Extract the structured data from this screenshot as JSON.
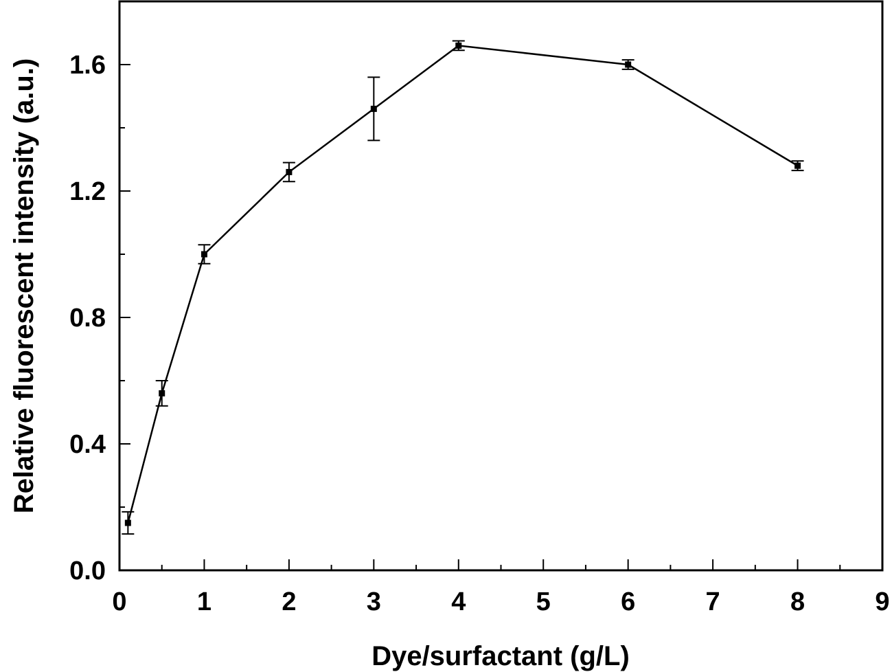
{
  "chart_data": {
    "type": "line",
    "xlabel": "Dye/surfactant (g/L)",
    "ylabel": "Relative fluorescent intensity (a.u.)",
    "xlim": [
      0,
      9
    ],
    "ylim": [
      0,
      1.8
    ],
    "x_ticks": [
      "0",
      "1",
      "2",
      "3",
      "4",
      "5",
      "6",
      "7",
      "8",
      "9"
    ],
    "y_ticks": [
      "0.0",
      "0.4",
      "0.8",
      "1.2",
      "1.6"
    ],
    "grid": false,
    "legend": "none",
    "colors": {
      "line": "#000000",
      "marker": "#000000"
    },
    "series": [
      {
        "marker": "square",
        "x": [
          0.1,
          0.5,
          1,
          2,
          3,
          4,
          6,
          8
        ],
        "y": [
          0.15,
          0.56,
          1.0,
          1.26,
          1.46,
          1.66,
          1.6,
          1.28
        ],
        "error": [
          0.035,
          0.04,
          0.03,
          0.03,
          0.1,
          0.015,
          0.015,
          0.015
        ]
      }
    ]
  }
}
